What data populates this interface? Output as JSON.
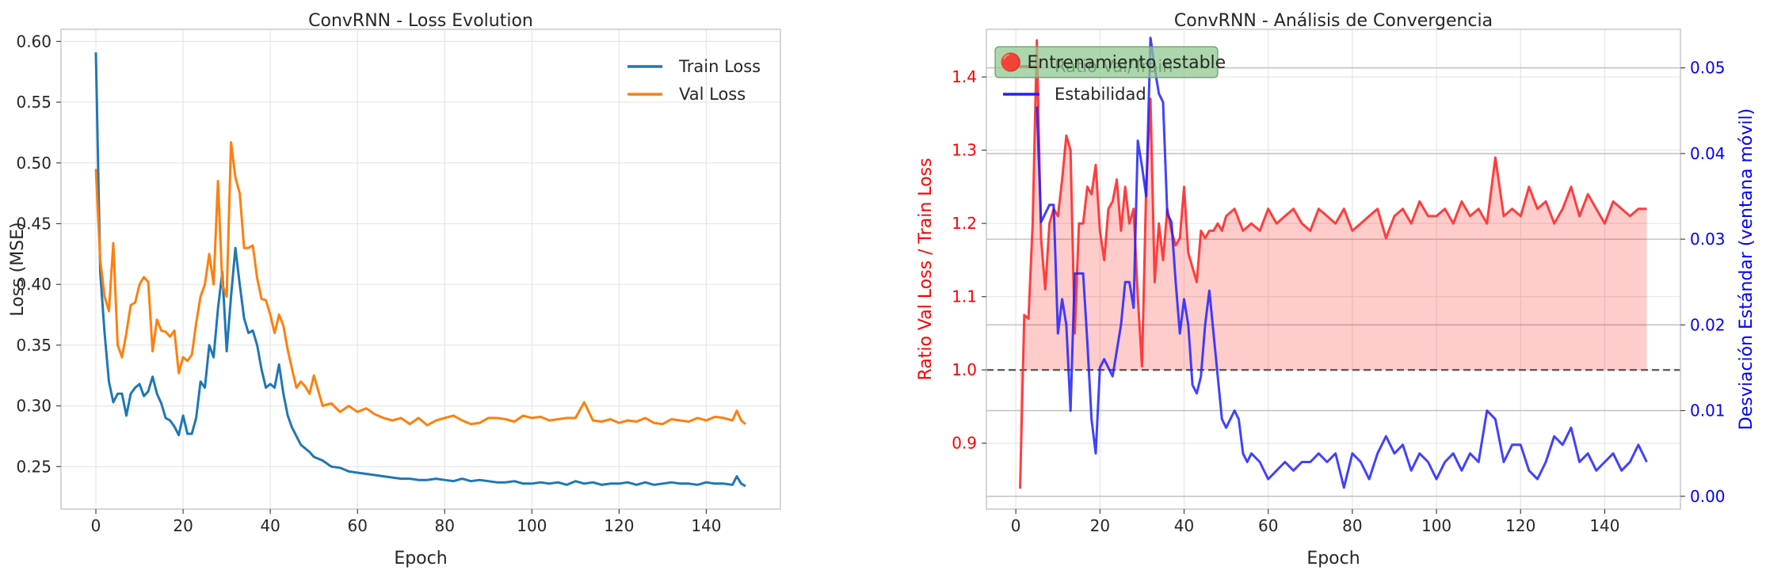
{
  "chart_data": [
    {
      "type": "line",
      "title": "ConvRNN - Loss Evolution",
      "xlabel": "Epoch",
      "ylabel": "Loss (MSE)",
      "xlim": [
        -8,
        157
      ],
      "ylim": [
        0.215,
        0.61
      ],
      "xticks": [
        0,
        20,
        40,
        60,
        80,
        100,
        120,
        140
      ],
      "yticks": [
        0.25,
        0.3,
        0.35,
        0.4,
        0.45,
        0.5,
        0.55,
        0.6
      ],
      "ytick_labels": [
        "0.25",
        "0.30",
        "0.35",
        "0.40",
        "0.45",
        "0.50",
        "0.55",
        "0.60"
      ],
      "grid": true,
      "legend_position": "top-right",
      "series": [
        {
          "name": "Train Loss",
          "color": "#1f77b4",
          "x": [
            0,
            1,
            2,
            3,
            4,
            5,
            6,
            7,
            8,
            9,
            10,
            11,
            12,
            13,
            14,
            15,
            16,
            17,
            18,
            19,
            20,
            21,
            22,
            23,
            24,
            25,
            26,
            27,
            28,
            29,
            30,
            31,
            32,
            33,
            34,
            35,
            36,
            37,
            38,
            39,
            40,
            41,
            42,
            43,
            44,
            45,
            46,
            47,
            48,
            49,
            50,
            52,
            54,
            56,
            58,
            60,
            62,
            64,
            66,
            68,
            70,
            72,
            74,
            76,
            78,
            80,
            82,
            84,
            86,
            88,
            90,
            92,
            94,
            96,
            98,
            100,
            102,
            104,
            106,
            108,
            110,
            112,
            114,
            116,
            118,
            120,
            122,
            124,
            126,
            128,
            130,
            132,
            134,
            136,
            138,
            140,
            142,
            144,
            146,
            147,
            148,
            149
          ],
          "values": [
            0.591,
            0.41,
            0.36,
            0.32,
            0.303,
            0.31,
            0.31,
            0.292,
            0.31,
            0.315,
            0.318,
            0.308,
            0.312,
            0.324,
            0.31,
            0.302,
            0.29,
            0.288,
            0.283,
            0.276,
            0.292,
            0.277,
            0.277,
            0.29,
            0.32,
            0.315,
            0.35,
            0.34,
            0.38,
            0.41,
            0.345,
            0.39,
            0.43,
            0.4,
            0.372,
            0.36,
            0.362,
            0.35,
            0.33,
            0.315,
            0.318,
            0.315,
            0.334,
            0.31,
            0.292,
            0.282,
            0.275,
            0.268,
            0.265,
            0.262,
            0.258,
            0.255,
            0.25,
            0.249,
            0.246,
            0.245,
            0.244,
            0.243,
            0.242,
            0.241,
            0.24,
            0.24,
            0.239,
            0.239,
            0.24,
            0.239,
            0.238,
            0.24,
            0.238,
            0.239,
            0.238,
            0.237,
            0.237,
            0.238,
            0.236,
            0.236,
            0.237,
            0.236,
            0.237,
            0.235,
            0.238,
            0.236,
            0.237,
            0.235,
            0.236,
            0.236,
            0.237,
            0.235,
            0.237,
            0.235,
            0.236,
            0.237,
            0.236,
            0.236,
            0.235,
            0.237,
            0.236,
            0.236,
            0.235,
            0.242,
            0.236,
            0.234
          ]
        },
        {
          "name": "Val Loss",
          "color": "#ff7f0e",
          "x": [
            0,
            1,
            2,
            3,
            4,
            5,
            6,
            7,
            8,
            9,
            10,
            11,
            12,
            13,
            14,
            15,
            16,
            17,
            18,
            19,
            20,
            21,
            22,
            23,
            24,
            25,
            26,
            27,
            28,
            29,
            30,
            31,
            32,
            33,
            34,
            35,
            36,
            37,
            38,
            39,
            40,
            41,
            42,
            43,
            44,
            45,
            46,
            47,
            48,
            49,
            50,
            52,
            54,
            56,
            58,
            60,
            62,
            64,
            66,
            68,
            70,
            72,
            74,
            76,
            78,
            80,
            82,
            84,
            86,
            88,
            90,
            92,
            94,
            96,
            98,
            100,
            102,
            104,
            106,
            108,
            110,
            112,
            114,
            116,
            118,
            120,
            122,
            124,
            126,
            128,
            130,
            132,
            134,
            136,
            138,
            140,
            142,
            144,
            146,
            147,
            148,
            149
          ],
          "values": [
            0.495,
            0.42,
            0.39,
            0.378,
            0.434,
            0.35,
            0.34,
            0.36,
            0.383,
            0.385,
            0.4,
            0.406,
            0.402,
            0.345,
            0.371,
            0.362,
            0.361,
            0.357,
            0.362,
            0.327,
            0.34,
            0.337,
            0.342,
            0.368,
            0.39,
            0.4,
            0.425,
            0.4,
            0.485,
            0.4,
            0.39,
            0.517,
            0.488,
            0.475,
            0.43,
            0.43,
            0.432,
            0.405,
            0.388,
            0.387,
            0.375,
            0.36,
            0.375,
            0.366,
            0.346,
            0.33,
            0.315,
            0.32,
            0.316,
            0.31,
            0.325,
            0.3,
            0.302,
            0.295,
            0.3,
            0.295,
            0.298,
            0.293,
            0.29,
            0.288,
            0.29,
            0.285,
            0.29,
            0.284,
            0.288,
            0.29,
            0.292,
            0.288,
            0.285,
            0.286,
            0.29,
            0.29,
            0.289,
            0.287,
            0.292,
            0.29,
            0.291,
            0.288,
            0.289,
            0.29,
            0.29,
            0.303,
            0.288,
            0.287,
            0.289,
            0.286,
            0.288,
            0.287,
            0.29,
            0.286,
            0.285,
            0.289,
            0.288,
            0.287,
            0.29,
            0.288,
            0.291,
            0.29,
            0.288,
            0.296,
            0.288,
            0.285
          ]
        }
      ]
    },
    {
      "type": "line",
      "title": "ConvRNN - Análisis de Convergencia",
      "xlabel": "Epoch",
      "ylabel": "Ratio Val Loss / Train Loss",
      "ylabel_right": "Desviación Estándar (ventana móvil)",
      "xlim": [
        -7,
        158
      ],
      "ylim": [
        0.81,
        1.465
      ],
      "ylim_right": [
        -0.0015,
        0.0545
      ],
      "xticks": [
        0,
        20,
        40,
        60,
        80,
        100,
        120,
        140
      ],
      "yticks": [
        0.9,
        1.0,
        1.1,
        1.2,
        1.3,
        1.4
      ],
      "ytick_labels": [
        "0.9",
        "1.0",
        "1.1",
        "1.2",
        "1.3",
        "1.4"
      ],
      "yticks_right": [
        0.0,
        0.01,
        0.02,
        0.03,
        0.04,
        0.05
      ],
      "ytick_labels_right": [
        "0.00",
        "0.01",
        "0.02",
        "0.03",
        "0.04",
        "0.05"
      ],
      "grid": true,
      "legend_position": "top-left",
      "reference_line": 1.0,
      "shade_between": [
        1.0,
        "Ratio Val/Train"
      ],
      "annotation": "🔴 Entrenamiento estable",
      "annotation_color": "#90c890",
      "series": [
        {
          "name": "Ratio Val/Train",
          "color": "#ff2020",
          "axis": "left",
          "x": [
            1,
            2,
            3,
            4,
            5,
            6,
            7,
            8,
            9,
            10,
            11,
            12,
            13,
            14,
            15,
            16,
            17,
            18,
            19,
            20,
            21,
            22,
            23,
            24,
            25,
            26,
            27,
            28,
            29,
            30,
            31,
            32,
            33,
            34,
            35,
            36,
            37,
            38,
            39,
            40,
            41,
            42,
            43,
            44,
            45,
            46,
            47,
            48,
            49,
            50,
            52,
            54,
            56,
            58,
            60,
            62,
            64,
            66,
            68,
            70,
            72,
            74,
            76,
            78,
            80,
            82,
            84,
            86,
            88,
            90,
            92,
            94,
            96,
            98,
            100,
            102,
            104,
            106,
            108,
            110,
            112,
            114,
            116,
            118,
            120,
            122,
            124,
            126,
            128,
            130,
            132,
            134,
            136,
            138,
            140,
            142,
            144,
            146,
            148,
            150
          ],
          "values": [
            0.838,
            1.075,
            1.07,
            1.2,
            1.45,
            1.18,
            1.11,
            1.2,
            1.22,
            1.21,
            1.26,
            1.32,
            1.3,
            1.05,
            1.2,
            1.2,
            1.25,
            1.24,
            1.28,
            1.19,
            1.15,
            1.22,
            1.23,
            1.26,
            1.19,
            1.25,
            1.2,
            1.22,
            1.1,
            1.005,
            1.25,
            1.37,
            1.12,
            1.2,
            1.15,
            1.22,
            1.19,
            1.17,
            1.18,
            1.25,
            1.16,
            1.14,
            1.12,
            1.19,
            1.18,
            1.19,
            1.19,
            1.2,
            1.19,
            1.21,
            1.22,
            1.19,
            1.2,
            1.19,
            1.22,
            1.2,
            1.21,
            1.22,
            1.2,
            1.19,
            1.22,
            1.21,
            1.2,
            1.22,
            1.19,
            1.2,
            1.21,
            1.22,
            1.18,
            1.21,
            1.22,
            1.2,
            1.23,
            1.21,
            1.21,
            1.22,
            1.2,
            1.23,
            1.21,
            1.22,
            1.2,
            1.29,
            1.21,
            1.22,
            1.21,
            1.25,
            1.22,
            1.23,
            1.2,
            1.22,
            1.25,
            1.21,
            1.24,
            1.22,
            1.2,
            1.23,
            1.22,
            1.21,
            1.22,
            1.22
          ]
        },
        {
          "name": "Estabilidad",
          "color": "#2020ff",
          "axis": "right",
          "x": [
            5,
            6,
            7,
            8,
            9,
            10,
            11,
            12,
            13,
            14,
            15,
            16,
            17,
            18,
            19,
            20,
            21,
            22,
            23,
            24,
            25,
            26,
            27,
            28,
            29,
            30,
            31,
            32,
            33,
            34,
            35,
            36,
            37,
            38,
            39,
            40,
            41,
            42,
            43,
            44,
            45,
            46,
            47,
            48,
            49,
            50,
            51,
            52,
            53,
            54,
            55,
            56,
            58,
            60,
            62,
            64,
            66,
            68,
            70,
            72,
            74,
            76,
            78,
            80,
            82,
            84,
            86,
            88,
            90,
            92,
            94,
            96,
            98,
            100,
            102,
            104,
            106,
            108,
            110,
            112,
            114,
            116,
            118,
            120,
            122,
            124,
            126,
            128,
            130,
            132,
            134,
            136,
            138,
            140,
            142,
            144,
            146,
            148,
            150
          ],
          "values": [
            0.0455,
            0.032,
            0.033,
            0.034,
            0.034,
            0.019,
            0.023,
            0.02,
            0.01,
            0.026,
            0.026,
            0.026,
            0.018,
            0.009,
            0.005,
            0.015,
            0.016,
            0.015,
            0.014,
            0.017,
            0.02,
            0.025,
            0.025,
            0.022,
            0.0415,
            0.0385,
            0.035,
            0.0535,
            0.05,
            0.047,
            0.046,
            0.033,
            0.032,
            0.025,
            0.019,
            0.023,
            0.02,
            0.013,
            0.012,
            0.014,
            0.02,
            0.024,
            0.019,
            0.014,
            0.009,
            0.008,
            0.009,
            0.01,
            0.009,
            0.005,
            0.004,
            0.005,
            0.004,
            0.002,
            0.003,
            0.004,
            0.003,
            0.004,
            0.004,
            0.005,
            0.004,
            0.005,
            0.001,
            0.005,
            0.004,
            0.002,
            0.005,
            0.007,
            0.005,
            0.006,
            0.003,
            0.005,
            0.004,
            0.002,
            0.004,
            0.005,
            0.003,
            0.005,
            0.004,
            0.01,
            0.009,
            0.004,
            0.006,
            0.006,
            0.003,
            0.002,
            0.004,
            0.007,
            0.006,
            0.008,
            0.004,
            0.005,
            0.003,
            0.004,
            0.005,
            0.003,
            0.004,
            0.006,
            0.004
          ]
        }
      ]
    }
  ]
}
